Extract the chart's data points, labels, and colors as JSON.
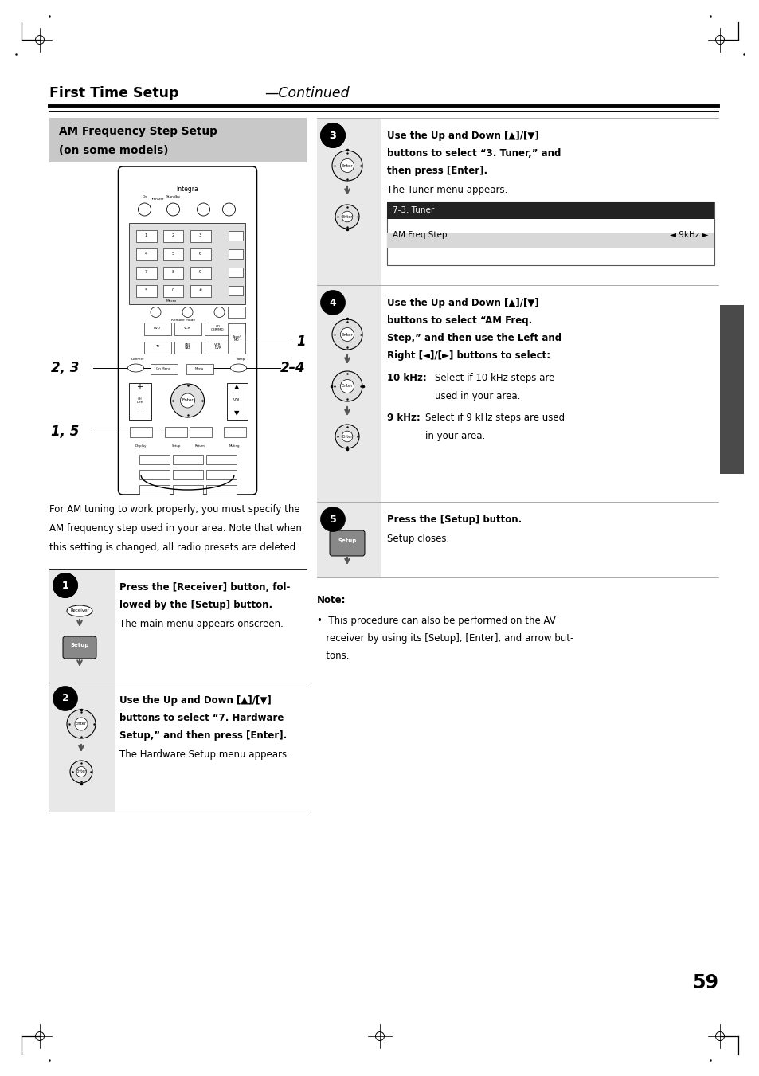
{
  "page_width": 9.54,
  "page_height": 13.51,
  "bg_color": "#ffffff",
  "title_bold": "First Time Setup",
  "title_italic": "—Continued",
  "section_title_line1": "AM Frequency Step Setup",
  "section_title_line2": "(on some models)",
  "intro_line1": "For AM tuning to work properly, you must specify the",
  "intro_line2": "AM frequency step used in your area. Note that when",
  "intro_line3": "this setting is changed, all radio presets are deleted.",
  "step1_bold_line1": "Press the [Receiver] button, fol-",
  "step1_bold_line2": "lowed by the [Setup] button.",
  "step1_normal": "The main menu appears onscreen.",
  "step2_bold_line1": "Use the Up and Down [▲]/[▼]",
  "step2_bold_line2": "buttons to select “7. Hardware",
  "step2_bold_line3": "Setup,” and then press [Enter].",
  "step2_normal": "The Hardware Setup menu appears.",
  "step3_bold_line1": "Use the Up and Down [▲]/[▼]",
  "step3_bold_line2": "buttons to select “3. Tuner,” and",
  "step3_bold_line3": "then press [Enter].",
  "step3_normal": "The Tuner menu appears.",
  "screen_title": "7-3. Tuner",
  "screen_row": "AM Freq Step",
  "screen_val": "◄ 9kHz ►",
  "step4_bold_line1": "Use the Up and Down [▲]/[▼]",
  "step4_bold_line2": "buttons to select “AM Freq.",
  "step4_bold_line3": "Step,” and then use the Left and",
  "step4_bold_line4": "Right [◄]/[►] buttons to select:",
  "step4_10khz_label": "10 kHz:",
  "step4_10khz_t1": "Select if 10 kHz steps are",
  "step4_10khz_t2": "used in your area.",
  "step4_9khz_label": "9 kHz:",
  "step4_9khz_t1": "Select if 9 kHz steps are used",
  "step4_9khz_t2": "in your area.",
  "step5_bold": "Press the [Setup] button.",
  "step5_normal": "Setup closes.",
  "note_title": "Note:",
  "note_line1": "•  This procedure can also be performed on the AV",
  "note_line2": "   receiver by using its [Setup], [Enter], and arrow but-",
  "note_line3": "   tons.",
  "page_num": "59",
  "label_1": "1",
  "label_23": "2, 3",
  "label_15": "1, 5",
  "label_24": "2–4"
}
